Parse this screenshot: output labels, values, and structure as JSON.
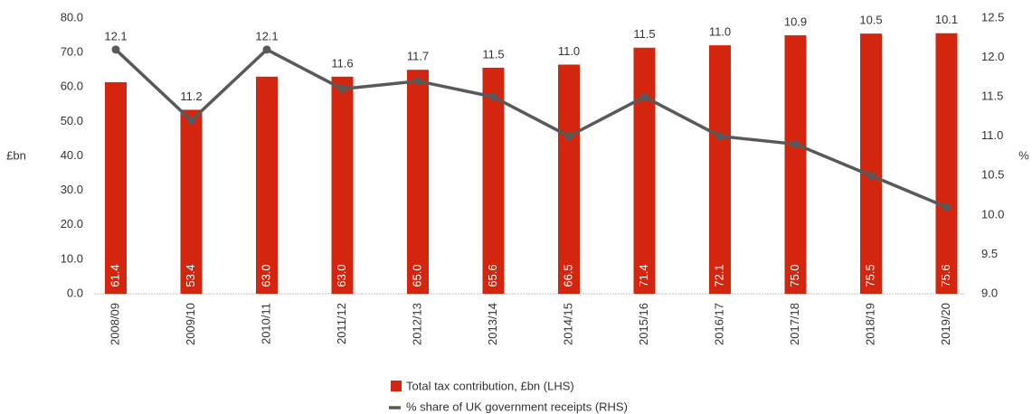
{
  "chart_data": {
    "type": "bar-line",
    "categories": [
      "2008/09",
      "2009/10",
      "2010/11",
      "2011/12",
      "2012/13",
      "2013/14",
      "2014/15",
      "2015/16",
      "2016/17",
      "2017/18",
      "2018/19",
      "2019/20"
    ],
    "ylabel": "£bn",
    "y2label": "%",
    "ylim": [
      0,
      80
    ],
    "yticks": [
      {
        "value": 0,
        "label": "0.0"
      },
      {
        "value": 10,
        "label": "10.0"
      },
      {
        "value": 20,
        "label": "20.0"
      },
      {
        "value": 30,
        "label": "30.0"
      },
      {
        "value": 40,
        "label": "40.0"
      },
      {
        "value": 50,
        "label": "50.0"
      },
      {
        "value": 60,
        "label": "60.0"
      },
      {
        "value": 70,
        "label": "70.0"
      },
      {
        "value": 80,
        "label": "80.0"
      }
    ],
    "y2lim": [
      9,
      12.5
    ],
    "y2ticks": [
      {
        "value": 9,
        "label": "9.0"
      },
      {
        "value": 9.5,
        "label": "9.5"
      },
      {
        "value": 10,
        "label": "10.0"
      },
      {
        "value": 10.5,
        "label": "10.5"
      },
      {
        "value": 11,
        "label": "11.0"
      },
      {
        "value": 11.5,
        "label": "11.5"
      },
      {
        "value": 12,
        "label": "12.0"
      },
      {
        "value": 12.5,
        "label": "12.5"
      }
    ],
    "series": [
      {
        "name": "Total tax contribution, £bn (LHS)",
        "color": "#d4260e",
        "type": "bar",
        "axis": "y",
        "values": [
          61.4,
          53.4,
          63,
          63,
          65,
          65.6,
          66.5,
          71.4,
          72.1,
          75,
          75.5,
          75.6
        ],
        "value_labels": [
          "61.4",
          "53.4",
          "63.0",
          "63.0",
          "65.0",
          "65.6",
          "66.5",
          "71.4",
          "72.1",
          "75.0",
          "75.5",
          "75.6"
        ]
      },
      {
        "name": "% share of UK government receipts (RHS)",
        "color": "#58595b",
        "type": "line",
        "axis": "y2",
        "values": [
          12.1,
          11.2,
          12.1,
          11.6,
          11.7,
          11.5,
          11,
          11.5,
          11,
          10.9,
          10.5,
          10.1
        ],
        "value_labels": [
          "12.1",
          "11.2",
          "12.1",
          "11.6",
          "11.7",
          "11.5",
          "11.0",
          "11.5",
          "11.0",
          "10.9",
          "10.5",
          "10.1"
        ]
      }
    ]
  }
}
